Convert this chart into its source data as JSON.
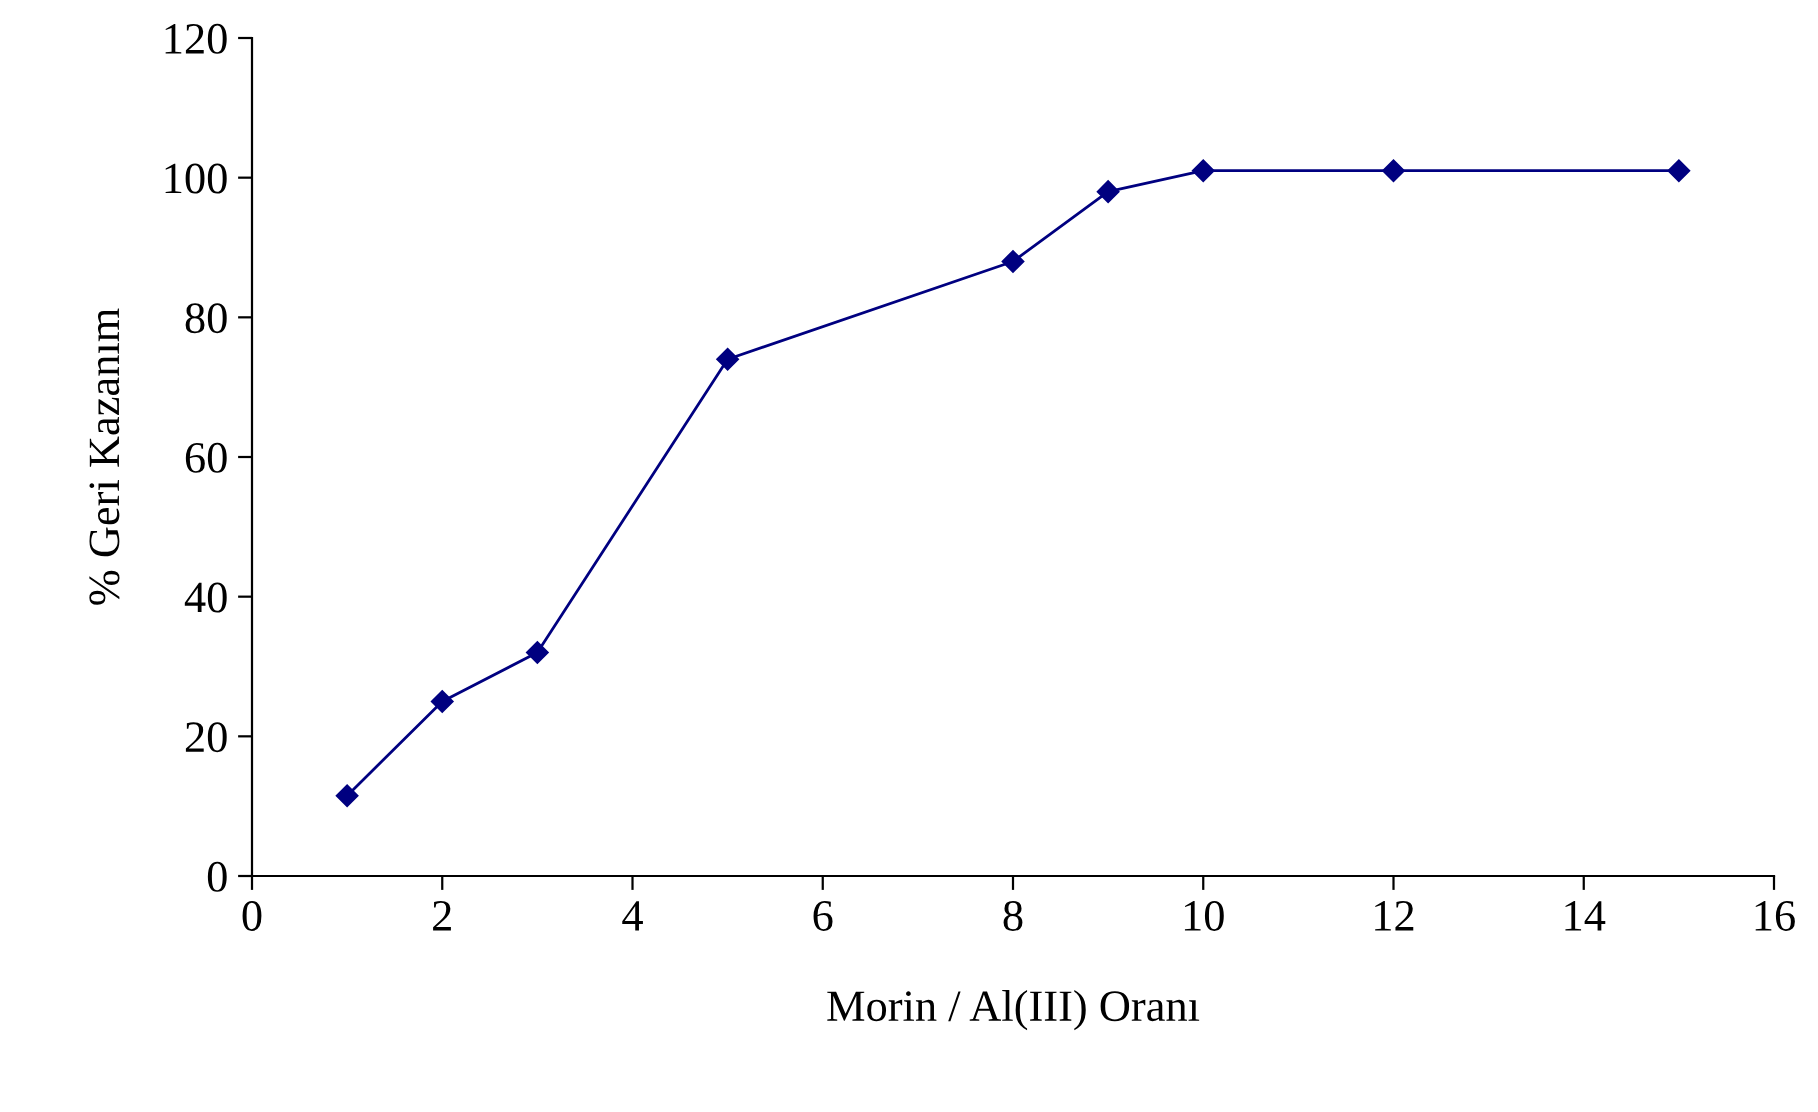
{
  "chart_data": {
    "type": "line",
    "xlabel": "Morin / Al(III) Oranı",
    "ylabel": "% Geri Kazanım",
    "x": [
      1,
      2,
      3,
      5,
      8,
      9,
      10,
      12,
      15
    ],
    "series": [
      {
        "color": "#000080",
        "values": [
          11.5,
          25,
          32,
          74,
          88,
          98,
          101,
          101,
          101
        ]
      }
    ],
    "xlim": [
      0,
      16
    ],
    "xticks": [
      0,
      2,
      4,
      6,
      8,
      10,
      12,
      14,
      16
    ],
    "ylim": [
      0,
      120
    ],
    "yticks": [
      0,
      20,
      40,
      60,
      80,
      100,
      120
    ],
    "grid": false,
    "marker": "diamond",
    "line_style": "solid"
  }
}
